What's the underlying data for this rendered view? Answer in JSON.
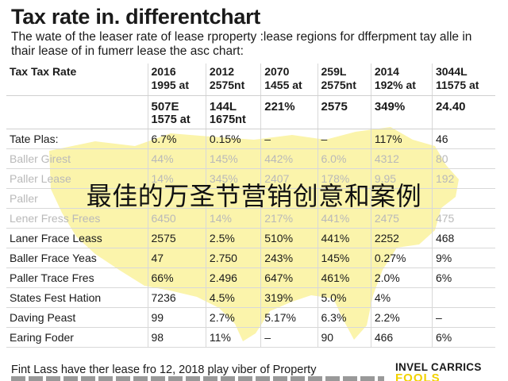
{
  "title": "Tax rate in. differentchart",
  "subtitle": "The wate of the  leaser rate of lease rproperty :lease regions for dfferpment tay alle in thair lease of in fumerr lease the asc chart:",
  "table": {
    "header_label": "Tax Tax Rate",
    "columns": [
      {
        "top": "2016",
        "sub": "1995 at",
        "val1": "507E",
        "val2": "1575 at"
      },
      {
        "top": "2012",
        "sub": "2575nt",
        "val1": "144L",
        "val2": "1675nt"
      },
      {
        "top": "2070",
        "sub": "1455 at",
        "val1": "221%",
        "val2": ""
      },
      {
        "top": "259L",
        "sub": "2575nt",
        "val1": "2575",
        "val2": ""
      },
      {
        "top": "2014",
        "sub": "192% at",
        "val1": "349%",
        "val2": ""
      },
      {
        "top": "3044L",
        "sub": "11575 at",
        "val1": "24.40",
        "val2": ""
      }
    ],
    "rows": [
      {
        "label": "Tate Plas:",
        "cells": [
          "6.7%",
          "0.15%",
          "–",
          "–",
          "117%",
          "46"
        ],
        "faded": false
      },
      {
        "label": "Baller Girest",
        "cells": [
          "44%",
          "145%",
          "442%",
          "6.0%",
          "4312",
          "80"
        ],
        "faded": true
      },
      {
        "label": "Paller Lease",
        "cells": [
          "14%",
          "345%",
          "2407",
          "178%",
          "9.95",
          "192"
        ],
        "faded": true
      },
      {
        "label": "Paller",
        "cells": [
          "",
          "",
          "",
          "",
          "",
          ""
        ],
        "faded": true
      },
      {
        "label": "Lener Fress Frees",
        "cells": [
          "6450",
          "14%",
          "217%",
          "441%",
          "2475",
          "475"
        ],
        "faded": true
      },
      {
        "label": "Laner Frace Leass",
        "cells": [
          "2575",
          "2.5%",
          "510%",
          "441%",
          "2252",
          "468"
        ],
        "faded": false
      },
      {
        "label": "Baller Frace Yeas",
        "cells": [
          "47",
          "2.750",
          "243%",
          "145%",
          "0.27%",
          "9%"
        ],
        "faded": false
      },
      {
        "label": "Paller Trace Fres",
        "cells": [
          "66%",
          "2.496",
          "647%",
          "461%",
          "2.0%",
          "6%"
        ],
        "faded": false
      },
      {
        "label": "States Fest Hation",
        "cells": [
          "7236",
          "4.5%",
          "319%",
          "5.0%",
          "4%",
          ""
        ],
        "faded": false
      },
      {
        "label": "Daving Peast",
        "cells": [
          "99",
          "2.7%",
          "5.17%",
          "6.3%",
          "2.2%",
          "–"
        ],
        "faded": false
      },
      {
        "label": "Earing Foder",
        "cells": [
          "98",
          "11%",
          "–",
          "90",
          "466",
          "6%"
        ],
        "faded": false
      }
    ]
  },
  "overlay_text": "最佳的万圣节营销创意和案例",
  "footer": "Fint Lass have ther lease fro 12, 2018 play viber of Property",
  "logo": {
    "line1": "INVEL CARRICS",
    "line2": "FOOLS"
  },
  "colors": {
    "map_fill": "#fbf3a6",
    "logo_accent": "#f2d200"
  }
}
